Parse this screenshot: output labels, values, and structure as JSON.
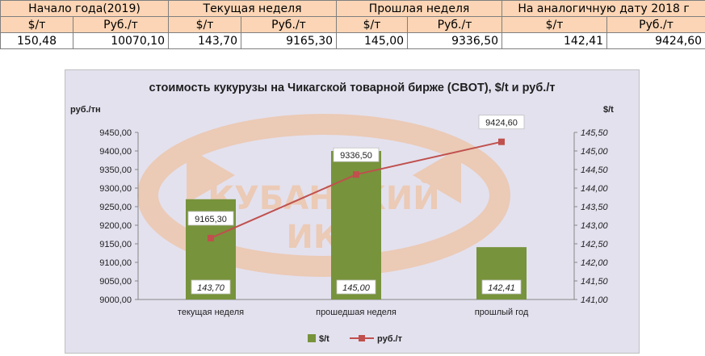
{
  "table": {
    "group_headers": [
      "Начало года(2019)",
      "Текущая неделя",
      "Прошлая неделя",
      "На аналогичную дату 2018 г"
    ],
    "unit_headers": [
      "$/т",
      "Руб./т",
      "$/т",
      "Руб./т",
      "$/т",
      "Руб./т",
      "$/т",
      "Руб./т"
    ],
    "values": [
      "150,48",
      "10070,10",
      "143,70",
      "9165,30",
      "145,00",
      "9336,50",
      "142,41",
      "9424,60"
    ]
  },
  "watermark": {
    "line1": "КУБАНСКИЙ",
    "line2": "ИКЦ"
  },
  "chart_data": {
    "type": "bar",
    "title": "стоимость кукурузы на Чикагской товарной бирже (CBOT), $/t и руб./т",
    "categories": [
      "текущая неделя",
      "прошедшая неделя",
      "прошлый год"
    ],
    "left_axis": {
      "label": "руб./тн",
      "min": 9000,
      "max": 9450,
      "step": 50,
      "ticks": [
        "9000,00",
        "9050,00",
        "9100,00",
        "9150,00",
        "9200,00",
        "9250,00",
        "9300,00",
        "9350,00",
        "9400,00",
        "9450,00"
      ]
    },
    "right_axis": {
      "label": "$/t",
      "min": 141,
      "max": 145.5,
      "step": 0.5,
      "ticks": [
        "141,00",
        "141,50",
        "142,00",
        "142,50",
        "143,00",
        "143,50",
        "144,00",
        "144,50",
        "145,00",
        "145,50"
      ]
    },
    "series": [
      {
        "name": "$/t",
        "kind": "bar",
        "axis": "right",
        "color": "#77933c",
        "values": [
          143.7,
          145.0,
          142.41
        ],
        "labels": [
          "143,70",
          "145,00",
          "142,41"
        ]
      },
      {
        "name": "руб./т",
        "kind": "line",
        "axis": "left",
        "color": "#c0504d",
        "values": [
          9165.3,
          9336.5,
          9424.6
        ],
        "labels": [
          "9165,30",
          "9336,50",
          "9424,60"
        ]
      }
    ],
    "grid": false,
    "legend_position": "bottom"
  }
}
